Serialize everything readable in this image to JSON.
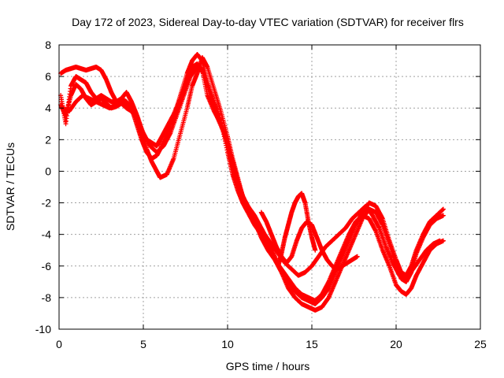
{
  "chart_data": {
    "type": "scatter",
    "title": "Day 172 of 2023, Sidereal Day-to-day VTEC variation (SDTVAR) for receiver flrs",
    "xlabel": "GPS time / hours",
    "ylabel": "SDTVAR / TECUs",
    "xlim": [
      0,
      25
    ],
    "ylim": [
      -10,
      8
    ],
    "xticks": [
      0,
      5,
      10,
      15,
      20,
      25
    ],
    "yticks": [
      -10,
      -8,
      -6,
      -4,
      -2,
      0,
      2,
      4,
      6,
      8
    ],
    "xtick_labels": [
      "0",
      "5",
      "10",
      "15",
      "20",
      "25"
    ],
    "ytick_labels": [
      "-10",
      "-8",
      "-6",
      "-4",
      "-2",
      "0",
      "2",
      "4",
      "6",
      "8"
    ],
    "grid": true,
    "marker": "+",
    "series_color": "#ff0000",
    "series": [
      {
        "name": "",
        "x": [
          0.1,
          0.4,
          0.7,
          1.0,
          1.3,
          1.6,
          1.9,
          2.2,
          2.5,
          2.8,
          3.1,
          3.4,
          3.7,
          4.0,
          4.3,
          4.6,
          4.9,
          5.2,
          5.5,
          5.8,
          6.0,
          6.4,
          6.8,
          7.2,
          7.6,
          7.9,
          8.2,
          8.5,
          8.8,
          9.2,
          9.6,
          10.0,
          10.3,
          10.6,
          10.9,
          11.2,
          11.6,
          12.0,
          12.4,
          12.8,
          13.2,
          13.6,
          14.0,
          14.4,
          14.8,
          15.2,
          15.6,
          16.0,
          16.4,
          16.8,
          17.2,
          17.6,
          18.0,
          18.4,
          18.8,
          19.2,
          19.6,
          20.0,
          20.3,
          20.6,
          20.9,
          21.2,
          21.6,
          22.0,
          22.4,
          22.8
        ],
        "y": [
          4.2,
          3.5,
          4.8,
          5.5,
          5.2,
          4.6,
          4.2,
          4.4,
          4.6,
          4.3,
          4.0,
          4.1,
          4.3,
          4.0,
          3.8,
          3.4,
          2.6,
          2.0,
          1.8,
          1.6,
          2.0,
          2.8,
          3.6,
          4.6,
          5.8,
          6.6,
          6.8,
          6.4,
          4.8,
          3.8,
          3.0,
          1.8,
          0.6,
          -0.6,
          -1.6,
          -2.2,
          -2.8,
          -3.6,
          -4.4,
          -5.4,
          -6.4,
          -7.4,
          -8.0,
          -8.4,
          -8.6,
          -8.8,
          -8.6,
          -8.0,
          -7.0,
          -6.0,
          -5.0,
          -4.0,
          -3.0,
          -2.4,
          -2.6,
          -3.4,
          -4.6,
          -6.0,
          -6.8,
          -7.0,
          -6.4,
          -5.2,
          -4.2,
          -3.4,
          -3.0,
          -2.8
        ]
      },
      {
        "name": "",
        "x": [
          0.1,
          0.4,
          0.7,
          1.0,
          1.3,
          1.6,
          1.9,
          2.2,
          2.5,
          2.8,
          3.1,
          3.4,
          3.7,
          4.0,
          4.3,
          4.6,
          4.9,
          5.2,
          5.5,
          5.8,
          6.0,
          6.4,
          6.8,
          7.2,
          7.6,
          7.9,
          8.2,
          8.5,
          8.8,
          9.2,
          9.6,
          10.0,
          10.3,
          10.6,
          10.9,
          11.2,
          11.6,
          12.0,
          12.4,
          12.8,
          13.2,
          13.6,
          14.0,
          14.4,
          14.8,
          15.2,
          15.6,
          16.0,
          16.4,
          16.8,
          17.2,
          17.6,
          18.0,
          18.4,
          18.8,
          19.2,
          19.6,
          20.0,
          20.3,
          20.6,
          20.9,
          21.2,
          21.6,
          22.0,
          22.4,
          22.8
        ],
        "y": [
          6.2,
          6.4,
          6.5,
          6.6,
          6.5,
          6.4,
          6.5,
          6.6,
          6.4,
          5.8,
          5.0,
          4.4,
          4.6,
          5.0,
          4.4,
          3.6,
          2.6,
          1.4,
          0.6,
          0.0,
          -0.4,
          -0.2,
          0.8,
          2.4,
          4.0,
          5.4,
          6.2,
          7.2,
          6.6,
          5.2,
          3.8,
          2.2,
          0.8,
          -0.4,
          -1.6,
          -2.4,
          -3.2,
          -4.2,
          -5.0,
          -5.6,
          -6.2,
          -6.8,
          -7.4,
          -7.8,
          -8.0,
          -8.2,
          -7.8,
          -7.0,
          -6.0,
          -5.0,
          -4.0,
          -3.2,
          -2.8,
          -3.0,
          -3.8,
          -5.0,
          -6.0,
          -7.2,
          -7.6,
          -7.8,
          -7.4,
          -6.6,
          -5.8,
          -5.0,
          -4.6,
          -4.4
        ]
      },
      {
        "name": "",
        "x": [
          0.1,
          0.4,
          0.7,
          1.0,
          1.3,
          1.6,
          1.9,
          2.2,
          2.5,
          2.8,
          3.1,
          3.4,
          3.7,
          4.0,
          4.3,
          4.6,
          4.9,
          5.2,
          5.5,
          5.8,
          6.0,
          6.4,
          6.8,
          7.2,
          7.6,
          7.9,
          8.2,
          8.5,
          8.8,
          9.2,
          9.6,
          10.0,
          10.3,
          10.6,
          10.9,
          11.2,
          11.6,
          12.0,
          12.4,
          12.8,
          13.2,
          13.6,
          14.0,
          14.4,
          14.8,
          15.2,
          15.6,
          16.0,
          16.4,
          16.8,
          17.2,
          17.6,
          18.0,
          18.4,
          18.8,
          19.2,
          19.6,
          20.0,
          20.3,
          20.6,
          20.9,
          21.2,
          21.6,
          22.0,
          22.4,
          22.8
        ],
        "y": [
          4.8,
          3.0,
          5.4,
          6.0,
          5.8,
          5.6,
          5.0,
          4.6,
          4.8,
          4.6,
          4.4,
          4.4,
          4.6,
          4.4,
          4.0,
          3.0,
          2.0,
          1.2,
          0.8,
          1.0,
          1.4,
          2.4,
          3.4,
          4.8,
          6.2,
          7.0,
          7.4,
          7.0,
          5.6,
          4.4,
          3.2,
          1.2,
          -0.2,
          -1.2,
          -2.0,
          -2.6,
          -3.4,
          -4.0,
          -4.8,
          -5.6,
          -6.4,
          -7.0,
          -7.6,
          -8.0,
          -8.2,
          -8.4,
          -8.0,
          -7.4,
          -6.4,
          -5.4,
          -4.4,
          -3.4,
          -2.6,
          -2.0,
          -2.2,
          -3.0,
          -4.4,
          -5.6,
          -6.4,
          -6.6,
          -6.0,
          -5.0,
          -4.0,
          -3.2,
          -2.8,
          -2.4
        ]
      },
      {
        "name": "",
        "x": [
          0.2,
          0.6,
          1.0,
          1.4,
          1.8,
          2.2,
          2.6,
          3.0,
          3.4,
          3.8,
          4.2,
          4.6,
          5.0,
          5.4,
          5.8,
          6.2,
          6.6,
          7.0,
          7.4,
          7.8,
          8.2,
          8.6,
          9.0,
          9.4,
          9.8,
          10.2,
          10.6,
          11.0,
          11.4,
          11.8,
          12.2,
          12.6,
          13.0,
          13.4,
          13.8,
          14.2,
          14.6,
          15.0,
          15.4,
          15.8,
          16.2,
          16.6,
          17.0,
          17.4,
          17.8,
          18.2,
          18.6,
          19.0,
          19.4,
          19.8,
          20.2,
          20.6,
          21.0,
          21.4,
          21.8,
          22.2,
          22.6
        ],
        "y": [
          4.0,
          3.8,
          4.4,
          4.8,
          4.6,
          4.4,
          4.2,
          4.0,
          4.2,
          4.4,
          4.2,
          3.6,
          2.4,
          1.6,
          1.2,
          1.6,
          2.4,
          3.6,
          4.8,
          6.0,
          6.6,
          6.2,
          4.6,
          3.4,
          2.4,
          0.6,
          -0.8,
          -1.8,
          -2.6,
          -3.4,
          -4.0,
          -4.6,
          -5.2,
          -5.8,
          -6.2,
          -6.6,
          -6.4,
          -6.0,
          -5.4,
          -4.8,
          -4.4,
          -4.0,
          -3.6,
          -3.0,
          -2.6,
          -2.2,
          -2.8,
          -3.6,
          -4.8,
          -5.8,
          -6.6,
          -6.8,
          -6.2,
          -5.6,
          -5.0,
          -4.6,
          -4.4
        ]
      },
      {
        "name": "",
        "x": [
          12.0,
          12.3,
          12.6,
          12.9,
          13.2,
          13.5,
          13.8,
          14.1,
          14.4,
          14.7,
          15.0,
          15.3,
          15.6,
          15.9,
          16.2,
          16.5,
          16.8,
          17.1,
          17.4,
          17.7
        ],
        "y": [
          -2.6,
          -3.2,
          -4.0,
          -4.8,
          -5.4,
          -5.8,
          -5.4,
          -4.4,
          -3.6,
          -3.2,
          -3.4,
          -4.2,
          -5.0,
          -5.6,
          -6.0,
          -6.2,
          -6.0,
          -5.8,
          -5.6,
          -5.4
        ]
      },
      {
        "name": "",
        "x": [
          13.0,
          13.2,
          13.4,
          13.6,
          13.8,
          14.0,
          14.2,
          14.4,
          14.6,
          14.8,
          15.0,
          15.2
        ],
        "y": [
          -6.0,
          -5.2,
          -4.2,
          -3.4,
          -2.6,
          -2.0,
          -1.6,
          -1.4,
          -2.0,
          -3.2,
          -4.2,
          -5.0
        ]
      }
    ]
  }
}
